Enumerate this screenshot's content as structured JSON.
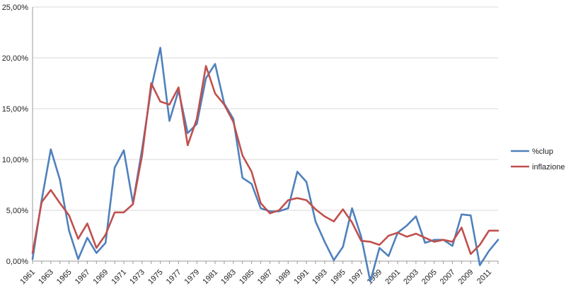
{
  "chart_data": {
    "type": "line",
    "title": "",
    "xlabel": "",
    "ylabel": "",
    "ylim": [
      0,
      25
    ],
    "y_tick_labels": [
      "0,00%",
      "5,00%",
      "10,00%",
      "15,00%",
      "20,00%",
      "25,00%"
    ],
    "y_ticks": [
      0,
      5,
      10,
      15,
      20,
      25
    ],
    "grid": "horizontal",
    "legend": "right",
    "x": [
      1961,
      1962,
      1963,
      1964,
      1965,
      1966,
      1967,
      1968,
      1969,
      1970,
      1971,
      1972,
      1973,
      1974,
      1975,
      1976,
      1977,
      1978,
      1979,
      1980,
      1981,
      1982,
      1983,
      1984,
      1985,
      1986,
      1987,
      1988,
      1989,
      1990,
      1991,
      1992,
      1993,
      1994,
      1995,
      1996,
      1997,
      1998,
      1999,
      2000,
      2001,
      2002,
      2003,
      2004,
      2005,
      2006,
      2007,
      2008,
      2009,
      2010,
      2011,
      2012
    ],
    "x_tick_labels": [
      "1961",
      "1963",
      "1965",
      "1967",
      "1969",
      "1971",
      "1973",
      "1975",
      "1977",
      "1979",
      "1981",
      "1983",
      "1985",
      "1987",
      "1989",
      "1991",
      "1993",
      "1995",
      "1997",
      "1999",
      "2001",
      "2003",
      "2005",
      "2007",
      "2009",
      "2011"
    ],
    "series": [
      {
        "name": "%clup",
        "color": "#4f81bd",
        "values": [
          0.2,
          6.0,
          11.0,
          8.0,
          3.0,
          0.2,
          2.3,
          0.8,
          1.8,
          9.2,
          10.9,
          5.7,
          11.0,
          17.0,
          21.0,
          13.8,
          16.8,
          12.6,
          13.5,
          18.0,
          19.4,
          15.5,
          14.0,
          8.2,
          7.6,
          5.2,
          4.9,
          4.9,
          5.2,
          8.8,
          7.8,
          3.9,
          1.9,
          0.1,
          1.4,
          5.2,
          2.4,
          -2.0,
          1.3,
          0.5,
          2.8,
          3.5,
          4.4,
          1.8,
          2.1,
          2.1,
          1.5,
          4.6,
          4.5,
          -0.4,
          1.0,
          2.1
        ]
      },
      {
        "name": "inflazione",
        "color": "#c0504d",
        "values": [
          0.8,
          5.8,
          7.0,
          5.7,
          4.5,
          2.2,
          3.7,
          1.3,
          2.6,
          4.8,
          4.8,
          5.6,
          10.4,
          17.5,
          15.7,
          15.4,
          17.1,
          11.4,
          14.0,
          19.2,
          16.5,
          15.4,
          13.7,
          10.4,
          8.8,
          5.7,
          4.7,
          5.0,
          6.0,
          6.2,
          6.0,
          5.1,
          4.4,
          3.9,
          5.1,
          3.8,
          2.0,
          1.9,
          1.6,
          2.5,
          2.8,
          2.4,
          2.7,
          2.3,
          1.9,
          2.1,
          1.9,
          3.3,
          0.7,
          1.6,
          3.0,
          3.0
        ]
      }
    ]
  }
}
